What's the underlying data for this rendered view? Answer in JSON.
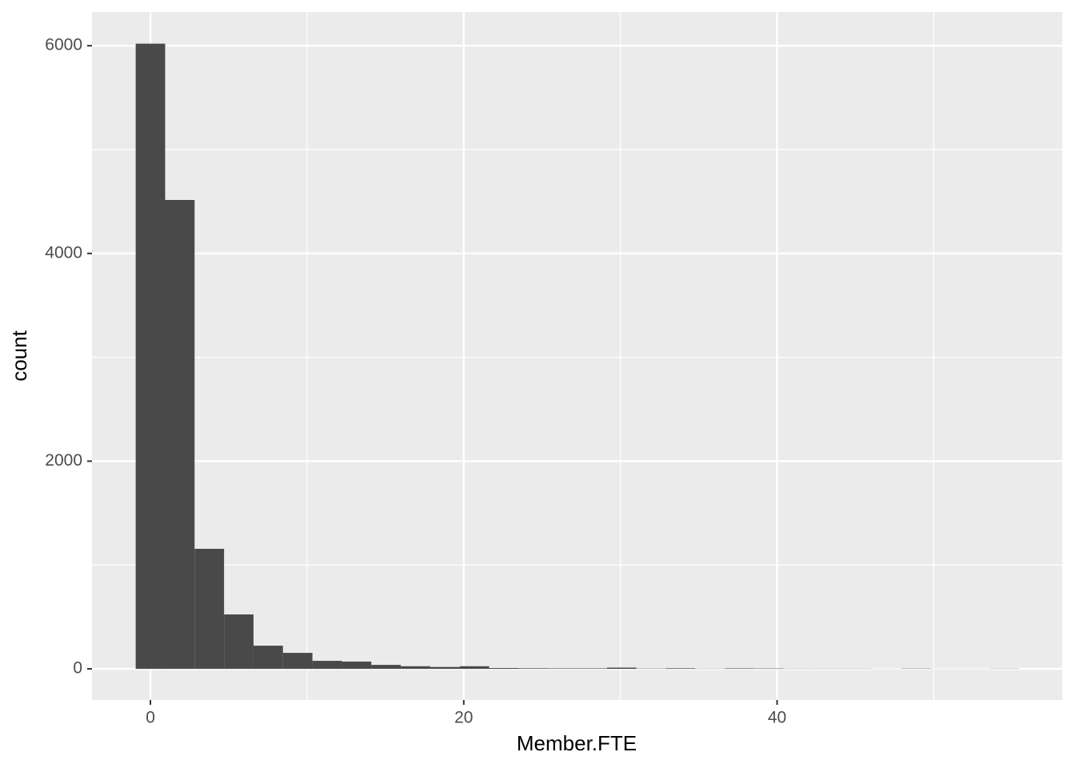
{
  "chart_data": {
    "type": "histogram",
    "x_label": "Member.FTE",
    "y_label": "count",
    "bins": [
      -0.94,
      0.94,
      2.82,
      4.7,
      6.58,
      8.46,
      10.34,
      12.22,
      14.1,
      15.98,
      17.86,
      19.74,
      21.62,
      23.5,
      25.38,
      27.26,
      29.14,
      31.02,
      32.9,
      34.78,
      36.66,
      38.54,
      40.42,
      42.3,
      44.18,
      46.06,
      47.94,
      49.82,
      51.7,
      53.58,
      55.46
    ],
    "values": [
      6020,
      4515,
      1156,
      524,
      223,
      154,
      77,
      70,
      38,
      25,
      18,
      25,
      8,
      6,
      5,
      5,
      12,
      3,
      6,
      2,
      5,
      4,
      2,
      2,
      2,
      1,
      3,
      1,
      1,
      2
    ],
    "color": "#494949",
    "xlim": [
      -3.73,
      58.2
    ],
    "ylim": [
      -300,
      6325
    ],
    "xticks": [
      0,
      20,
      40
    ],
    "yticks": [
      0,
      2000,
      4000,
      6000
    ],
    "x_minor_grid": [
      10,
      30,
      50
    ],
    "y_minor_grid": [
      1000,
      3000,
      5000
    ],
    "grid": true
  }
}
